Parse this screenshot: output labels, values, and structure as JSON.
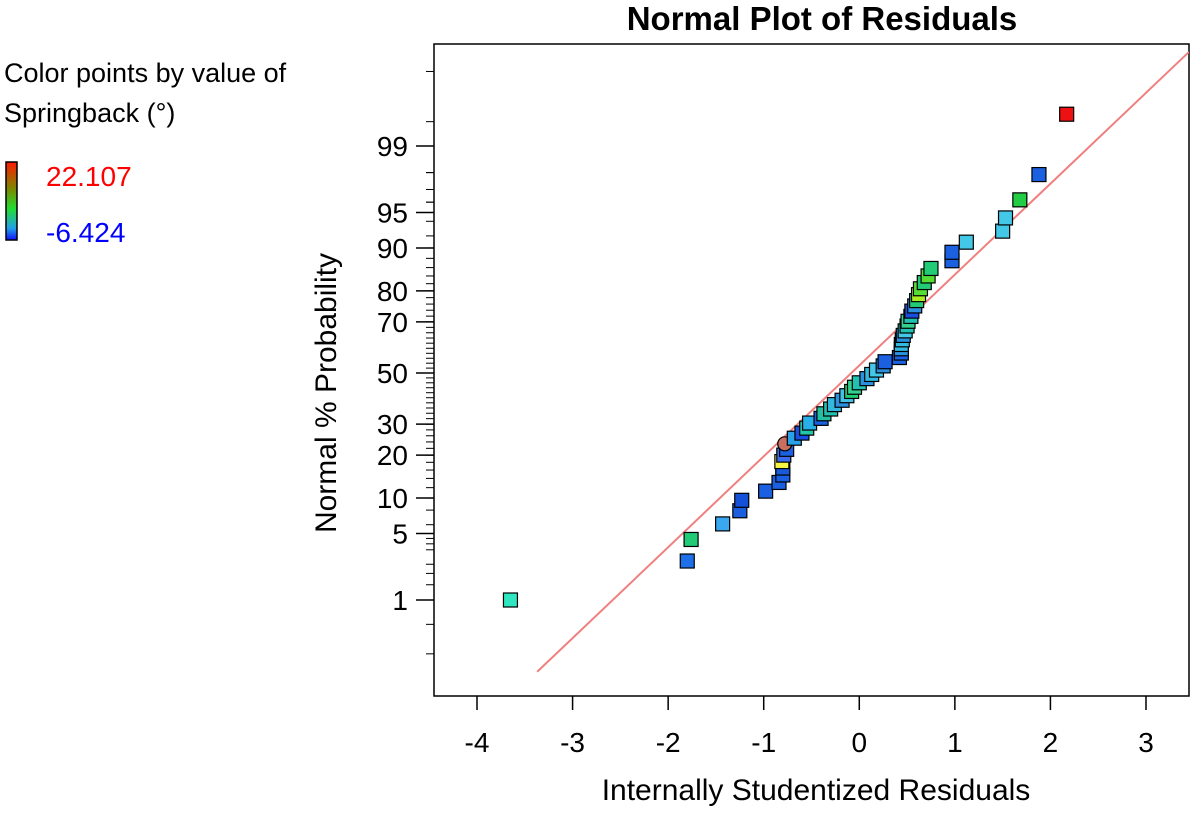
{
  "chart_data": {
    "type": "scatter",
    "title": "Normal Plot of Residuals",
    "xlabel": "Internally Studentized Residuals",
    "ylabel": "Normal % Probability",
    "xlim": [
      -4.45,
      3.45
    ],
    "x_ticks": [
      -4,
      -3,
      -2,
      -1,
      0,
      1,
      2,
      3
    ],
    "y_scale": "normal probability",
    "y_ticks": [
      1,
      5,
      10,
      20,
      30,
      50,
      70,
      80,
      90,
      95,
      99
    ],
    "grid": false,
    "reference_line": {
      "color": "#f08080",
      "from": [
        -3.37,
        0.11
      ],
      "to": [
        3.45,
        99.95
      ]
    },
    "color_legend": {
      "title": "Color points by value of Springback (°)",
      "max_label": "22.107",
      "min_label": "-6.424",
      "max_color": "#ff0000",
      "min_color": "#0000ff",
      "placement": "left"
    },
    "points": [
      {
        "x": -3.65,
        "y": 1.0,
        "color": "#2ee6c0"
      },
      {
        "x": -1.8,
        "y": 2.7,
        "color": "#1f6fe8"
      },
      {
        "x": -1.76,
        "y": 4.4,
        "color": "#22cc77"
      },
      {
        "x": -1.43,
        "y": 6.1,
        "color": "#3aa8f0"
      },
      {
        "x": -1.25,
        "y": 7.9,
        "color": "#1b5fe0"
      },
      {
        "x": -1.23,
        "y": 9.6,
        "color": "#1450d8"
      },
      {
        "x": -0.98,
        "y": 11.3,
        "color": "#1a60e0"
      },
      {
        "x": -0.84,
        "y": 13.1,
        "color": "#1a60e0"
      },
      {
        "x": -0.8,
        "y": 14.8,
        "color": "#1a60e0"
      },
      {
        "x": -0.8,
        "y": 16.5,
        "color": "#1a5ad8"
      },
      {
        "x": -0.81,
        "y": 18.2,
        "color": "#f5f542"
      },
      {
        "x": -0.79,
        "y": 20.0,
        "color": "#3b6cf0"
      },
      {
        "x": -0.76,
        "y": 21.7,
        "color": "#1a60e0"
      },
      {
        "x": -0.78,
        "y": 23.4,
        "color": "#c87060",
        "shape": "circle"
      },
      {
        "x": -0.68,
        "y": 25.2,
        "color": "#2aa0e8"
      },
      {
        "x": -0.6,
        "y": 26.9,
        "color": "#1a4ee0"
      },
      {
        "x": -0.55,
        "y": 28.6,
        "color": "#22c7a8"
      },
      {
        "x": -0.52,
        "y": 30.4,
        "color": "#27b0e8"
      },
      {
        "x": -0.4,
        "y": 32.1,
        "color": "#1a60e0"
      },
      {
        "x": -0.37,
        "y": 33.8,
        "color": "#22c0a0"
      },
      {
        "x": -0.3,
        "y": 35.6,
        "color": "#22c0b0"
      },
      {
        "x": -0.26,
        "y": 37.3,
        "color": "#33b8e0"
      },
      {
        "x": -0.18,
        "y": 39.0,
        "color": "#2a90e0"
      },
      {
        "x": -0.13,
        "y": 40.8,
        "color": "#44c0e6"
      },
      {
        "x": -0.08,
        "y": 42.5,
        "color": "#22cc77"
      },
      {
        "x": -0.05,
        "y": 44.2,
        "color": "#33d090"
      },
      {
        "x": 0.0,
        "y": 46.0,
        "color": "#22c0b0"
      },
      {
        "x": 0.08,
        "y": 47.7,
        "color": "#2a90e0"
      },
      {
        "x": 0.13,
        "y": 49.4,
        "color": "#33b8e0"
      },
      {
        "x": 0.18,
        "y": 51.2,
        "color": "#44c8e8"
      },
      {
        "x": 0.25,
        "y": 52.9,
        "color": "#2a90e0"
      },
      {
        "x": 0.27,
        "y": 54.6,
        "color": "#1a60e0"
      },
      {
        "x": 0.42,
        "y": 56.3,
        "color": "#1a60e0"
      },
      {
        "x": 0.44,
        "y": 58.1,
        "color": "#1a60e0"
      },
      {
        "x": 0.44,
        "y": 59.8,
        "color": "#2a90e0"
      },
      {
        "x": 0.44,
        "y": 61.5,
        "color": "#33b8e0"
      },
      {
        "x": 0.45,
        "y": 63.3,
        "color": "#33b8e0"
      },
      {
        "x": 0.46,
        "y": 65.0,
        "color": "#2a90e0"
      },
      {
        "x": 0.48,
        "y": 66.7,
        "color": "#44c8e8"
      },
      {
        "x": 0.5,
        "y": 68.5,
        "color": "#22c0b0"
      },
      {
        "x": 0.51,
        "y": 70.2,
        "color": "#33d090"
      },
      {
        "x": 0.54,
        "y": 71.9,
        "color": "#22c0b0"
      },
      {
        "x": 0.55,
        "y": 73.7,
        "color": "#1a4ee0"
      },
      {
        "x": 0.58,
        "y": 75.4,
        "color": "#2a90e0"
      },
      {
        "x": 0.6,
        "y": 77.1,
        "color": "#22cc77"
      },
      {
        "x": 0.62,
        "y": 78.9,
        "color": "#aaee22"
      },
      {
        "x": 0.64,
        "y": 80.6,
        "color": "#55dd33"
      },
      {
        "x": 0.68,
        "y": 82.3,
        "color": "#22cc77"
      },
      {
        "x": 0.72,
        "y": 84.0,
        "color": "#55dd33"
      },
      {
        "x": 0.75,
        "y": 85.8,
        "color": "#22cc77"
      },
      {
        "x": 0.97,
        "y": 87.5,
        "color": "#1a60e0"
      },
      {
        "x": 0.97,
        "y": 89.2,
        "color": "#1a60e0"
      },
      {
        "x": 1.12,
        "y": 91.0,
        "color": "#44c8e8"
      },
      {
        "x": 1.5,
        "y": 92.7,
        "color": "#44c8e8"
      },
      {
        "x": 1.53,
        "y": 94.4,
        "color": "#44c8e8"
      },
      {
        "x": 1.68,
        "y": 96.2,
        "color": "#22cc44"
      },
      {
        "x": 1.88,
        "y": 97.9,
        "color": "#1a60e0"
      },
      {
        "x": 2.17,
        "y": 99.6,
        "color": "#ee1111"
      }
    ]
  }
}
